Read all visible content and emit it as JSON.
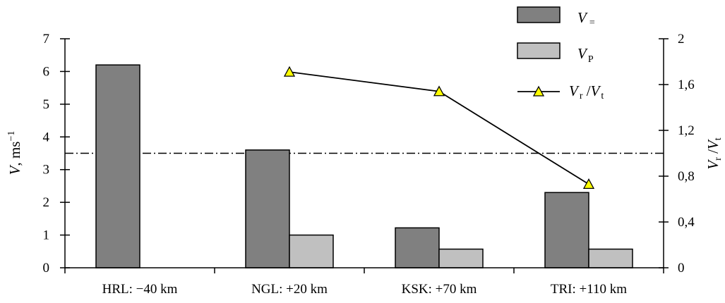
{
  "chart_data": {
    "type": "bar",
    "categories": [
      "HRL: −40 km",
      "NGL: +20 km",
      "KSK: +70 km",
      "TRI: +110 km"
    ],
    "series": [
      {
        "name": "V=",
        "axis": "left",
        "color": "#808080",
        "values": [
          6.2,
          3.6,
          1.22,
          2.3
        ]
      },
      {
        "name": "VP",
        "axis": "left",
        "color": "#c0c0c0",
        "values": [
          null,
          1.0,
          0.57,
          0.57
        ]
      },
      {
        "name": "Vr/Vt",
        "axis": "right",
        "type": "line",
        "marker": "triangle",
        "marker_color": "#ffff00",
        "values": [
          null,
          1.71,
          1.54,
          0.73
        ]
      }
    ],
    "legend": [
      {
        "main": "V",
        "sub": "=",
        "kind": "bar",
        "color": "#808080"
      },
      {
        "main": "V",
        "sub": "P",
        "kind": "bar",
        "color": "#c0c0c0"
      },
      {
        "main": "V",
        "sub": "r",
        "mid": " /",
        "main2": "V",
        "sub2": "t",
        "kind": "line"
      }
    ],
    "legend_position": "top-right",
    "ylabel_left": {
      "main": "V",
      "rest": ", ms",
      "sup": "−1"
    },
    "ylabel_right": {
      "main": "V",
      "sub": "r",
      "mid": " /",
      "main2": "V",
      "sub2": "t"
    },
    "ylim_left": [
      0,
      7
    ],
    "ylim_right": [
      0,
      2
    ],
    "yticks_left": [
      "0",
      "1",
      "2",
      "3",
      "4",
      "5",
      "6",
      "7"
    ],
    "yticks_right": [
      "0",
      "0,4",
      "0,8",
      "1,2",
      "1,6",
      "2"
    ],
    "yticks_right_values": [
      0,
      0.4,
      0.8,
      1.2,
      1.6,
      2.0
    ],
    "reference_line": {
      "axis": "right",
      "value": 1.0,
      "style": "dash-dot"
    },
    "grid": false
  }
}
